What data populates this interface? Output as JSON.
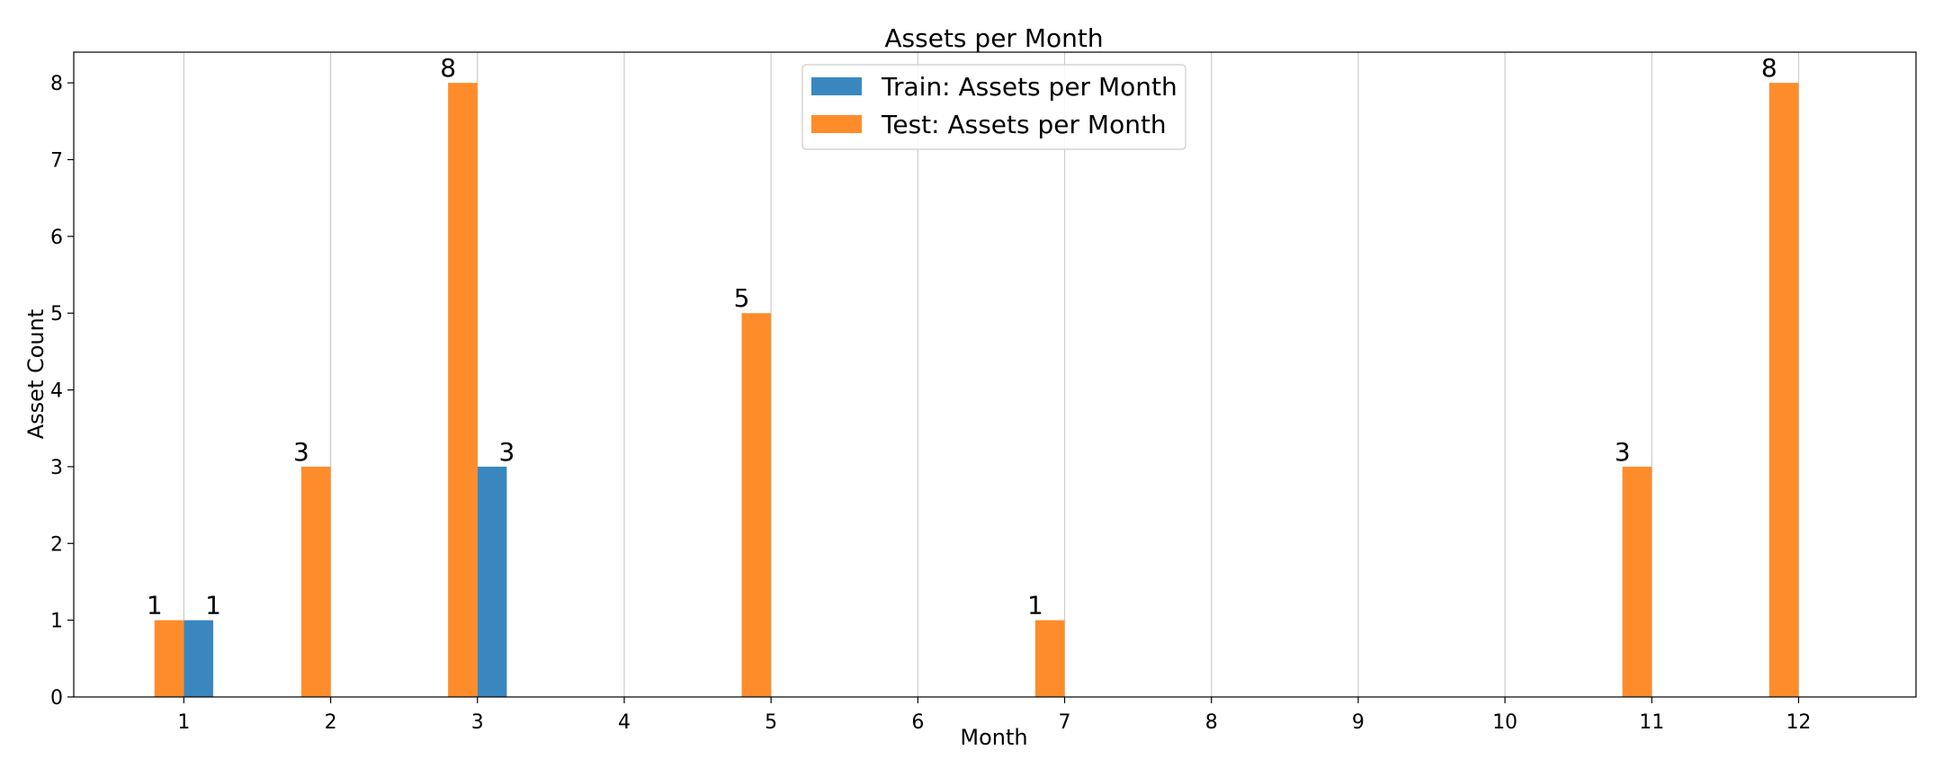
{
  "chart_data": {
    "type": "bar",
    "title": "Assets per Month",
    "xlabel": "Month",
    "ylabel": "Asset Count",
    "x_ticks": [
      1,
      2,
      3,
      4,
      5,
      6,
      7,
      8,
      9,
      10,
      11,
      12
    ],
    "y_ticks": [
      0,
      1,
      2,
      3,
      4,
      5,
      6,
      7,
      8
    ],
    "xlim": [
      0.25,
      12.8
    ],
    "ylim": [
      0,
      8.4
    ],
    "grid": "vertical",
    "legend_placement": "top-center",
    "series": [
      {
        "name": "Train: Assets per Month",
        "color": "#3a87c0",
        "side": "right",
        "points": [
          {
            "x": 1,
            "value": 1
          },
          {
            "x": 3,
            "value": 3
          }
        ]
      },
      {
        "name": "Test: Assets per Month",
        "color": "#ff8c2b",
        "side": "left",
        "points": [
          {
            "x": 1,
            "value": 1
          },
          {
            "x": 2,
            "value": 3
          },
          {
            "x": 3,
            "value": 8
          },
          {
            "x": 5,
            "value": 5
          },
          {
            "x": 7,
            "value": 1
          },
          {
            "x": 11,
            "value": 3
          },
          {
            "x": 12,
            "value": 8
          }
        ]
      }
    ]
  }
}
